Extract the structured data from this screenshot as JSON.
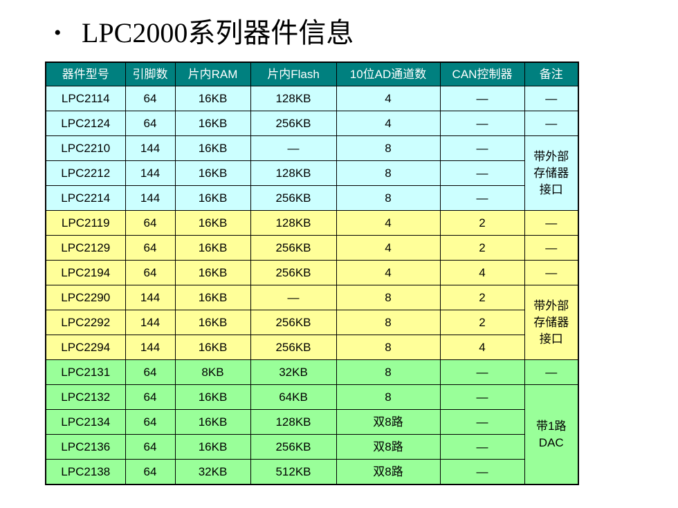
{
  "slide": {
    "bullet": "•",
    "title": "LPC2000系列器件信息"
  },
  "table": {
    "headers": [
      "器件型号",
      "引脚数",
      "片内RAM",
      "片内Flash",
      "10位AD通道数",
      "CAN控制器",
      "备注"
    ],
    "groups": [
      {
        "color": "#ccffff",
        "rows": [
          {
            "cells": [
              "LPC2114",
              "64",
              "16KB",
              "128KB",
              "4",
              "—"
            ],
            "note": "—"
          },
          {
            "cells": [
              "LPC2124",
              "64",
              "16KB",
              "256KB",
              "4",
              "—"
            ],
            "note": "—"
          },
          {
            "cells": [
              "LPC2210",
              "144",
              "16KB",
              "—",
              "8",
              "—"
            ],
            "note": "带外部存储器接口",
            "note_rowspan": 3
          },
          {
            "cells": [
              "LPC2212",
              "144",
              "16KB",
              "128KB",
              "8",
              "—"
            ]
          },
          {
            "cells": [
              "LPC2214",
              "144",
              "16KB",
              "256KB",
              "8",
              "—"
            ]
          }
        ]
      },
      {
        "color": "#ffff99",
        "rows": [
          {
            "cells": [
              "LPC2119",
              "64",
              "16KB",
              "128KB",
              "4",
              "2"
            ],
            "note": "—"
          },
          {
            "cells": [
              "LPC2129",
              "64",
              "16KB",
              "256KB",
              "4",
              "2"
            ],
            "note": "—"
          },
          {
            "cells": [
              "LPC2194",
              "64",
              "16KB",
              "256KB",
              "4",
              "4"
            ],
            "note": "—"
          },
          {
            "cells": [
              "LPC2290",
              "144",
              "16KB",
              "—",
              "8",
              "2"
            ],
            "note": "带外部存储器接口",
            "note_rowspan": 3
          },
          {
            "cells": [
              "LPC2292",
              "144",
              "16KB",
              "256KB",
              "8",
              "2"
            ]
          },
          {
            "cells": [
              "LPC2294",
              "144",
              "16KB",
              "256KB",
              "8",
              "4"
            ]
          }
        ]
      },
      {
        "color": "#99ff99",
        "rows": [
          {
            "cells": [
              "LPC2131",
              "64",
              "8KB",
              "32KB",
              "8",
              "—"
            ],
            "note": "—"
          },
          {
            "cells": [
              "LPC2132",
              "64",
              "16KB",
              "64KB",
              "8",
              "—"
            ],
            "note": "带1路DAC",
            "note_rowspan": 5
          },
          {
            "cells": [
              "LPC2134",
              "64",
              "16KB",
              "128KB",
              "双8路",
              "—"
            ]
          },
          {
            "cells": [
              "LPC2136",
              "64",
              "16KB",
              "256KB",
              "双8路",
              "—"
            ]
          },
          {
            "cells": [
              "LPC2138",
              "64",
              "32KB",
              "512KB",
              "双8路",
              "—"
            ]
          }
        ]
      }
    ]
  }
}
